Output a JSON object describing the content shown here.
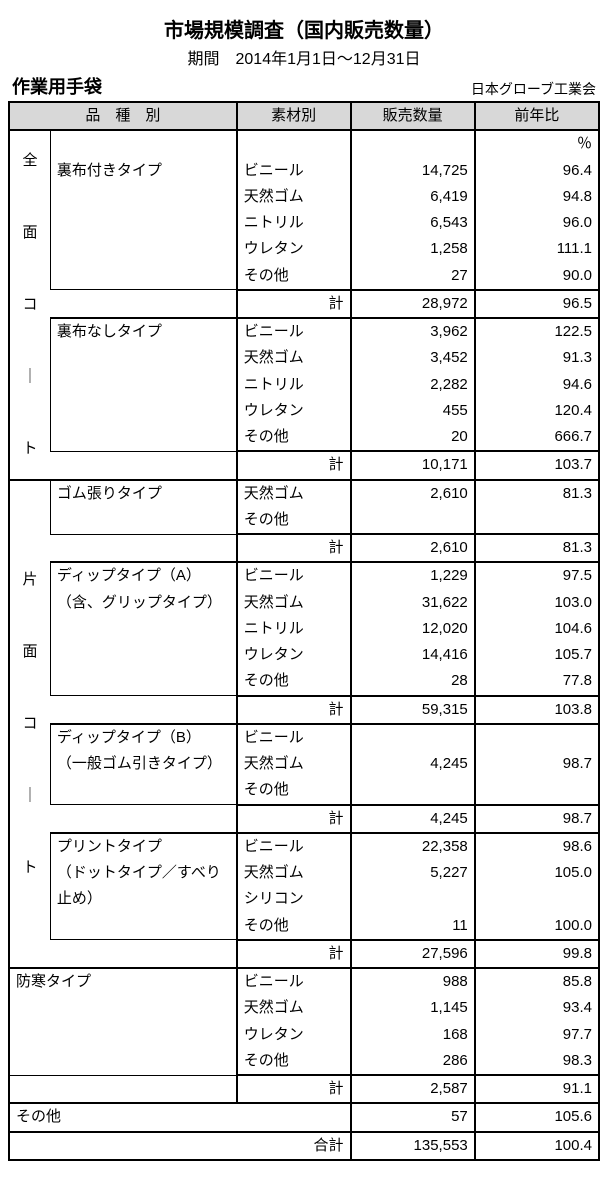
{
  "header": {
    "title": "市場規模調査（国内販売数量）",
    "period": "期間　2014年1月1日～12月31日",
    "product": "作業用手袋",
    "association": "日本グローブ工業会"
  },
  "columns": {
    "kind": "品　種　別",
    "material": "素材別",
    "qty": "販売数量",
    "ratio": "前年比"
  },
  "unit": "％",
  "cat1": {
    "label": "全\n\n面\n\nコ\n\n｜\n\nト"
  },
  "cat2": {
    "label": "片\n\n面\n\nコ\n\n｜\n\nト"
  },
  "grp_a": {
    "name": "裏布付きタイプ",
    "rows": [
      {
        "mat": "ビニール",
        "qty": "14,725",
        "pct": "96.4"
      },
      {
        "mat": "天然ゴム",
        "qty": "6,419",
        "pct": "94.8"
      },
      {
        "mat": "ニトリル",
        "qty": "6,543",
        "pct": "96.0"
      },
      {
        "mat": "ウレタン",
        "qty": "1,258",
        "pct": "111.1"
      },
      {
        "mat": "その他",
        "qty": "27",
        "pct": "90.0"
      }
    ],
    "sub": {
      "label": "計",
      "qty": "28,972",
      "pct": "96.5"
    }
  },
  "grp_b": {
    "name": "裏布なしタイプ",
    "rows": [
      {
        "mat": "ビニール",
        "qty": "3,962",
        "pct": "122.5"
      },
      {
        "mat": "天然ゴム",
        "qty": "3,452",
        "pct": "91.3"
      },
      {
        "mat": "ニトリル",
        "qty": "2,282",
        "pct": "94.6"
      },
      {
        "mat": "ウレタン",
        "qty": "455",
        "pct": "120.4"
      },
      {
        "mat": "その他",
        "qty": "20",
        "pct": "666.7"
      }
    ],
    "sub": {
      "label": "計",
      "qty": "10,171",
      "pct": "103.7"
    }
  },
  "grp_c": {
    "name": "ゴム張りタイプ",
    "rows": [
      {
        "mat": "天然ゴム",
        "qty": "2,610",
        "pct": "81.3"
      },
      {
        "mat": "その他",
        "qty": "",
        "pct": ""
      }
    ],
    "sub": {
      "label": "計",
      "qty": "2,610",
      "pct": "81.3"
    }
  },
  "grp_d": {
    "name1": "ディップタイプ（A）",
    "name2": "（含、グリップタイプ）",
    "rows": [
      {
        "mat": "ビニール",
        "qty": "1,229",
        "pct": "97.5"
      },
      {
        "mat": "天然ゴム",
        "qty": "31,622",
        "pct": "103.0"
      },
      {
        "mat": "ニトリル",
        "qty": "12,020",
        "pct": "104.6"
      },
      {
        "mat": "ウレタン",
        "qty": "14,416",
        "pct": "105.7"
      },
      {
        "mat": "その他",
        "qty": "28",
        "pct": "77.8"
      }
    ],
    "sub": {
      "label": "計",
      "qty": "59,315",
      "pct": "103.8"
    }
  },
  "grp_e": {
    "name1": "ディップタイプ（B）",
    "name2": "（一般ゴム引きタイプ）",
    "rows": [
      {
        "mat": "ビニール",
        "qty": "",
        "pct": ""
      },
      {
        "mat": "天然ゴム",
        "qty": "4,245",
        "pct": "98.7"
      },
      {
        "mat": "その他",
        "qty": "",
        "pct": ""
      }
    ],
    "sub": {
      "label": "計",
      "qty": "4,245",
      "pct": "98.7"
    }
  },
  "grp_f": {
    "name1": "プリントタイプ",
    "name2": "（ドットタイプ／すべり",
    "name3": "止め）",
    "rows": [
      {
        "mat": "ビニール",
        "qty": "22,358",
        "pct": "98.6"
      },
      {
        "mat": "天然ゴム",
        "qty": "5,227",
        "pct": "105.0"
      },
      {
        "mat": "シリコン",
        "qty": "",
        "pct": ""
      },
      {
        "mat": "その他",
        "qty": "11",
        "pct": "100.0"
      }
    ],
    "sub": {
      "label": "計",
      "qty": "27,596",
      "pct": "99.8"
    }
  },
  "grp_g": {
    "name": "防寒タイプ",
    "rows": [
      {
        "mat": "ビニール",
        "qty": "988",
        "pct": "85.8"
      },
      {
        "mat": "天然ゴム",
        "qty": "1,145",
        "pct": "93.4"
      },
      {
        "mat": "ウレタン",
        "qty": "168",
        "pct": "97.7"
      },
      {
        "mat": "その他",
        "qty": "286",
        "pct": "98.3"
      }
    ],
    "sub": {
      "label": "計",
      "qty": "2,587",
      "pct": "91.1"
    }
  },
  "grp_h": {
    "name": "その他",
    "qty": "57",
    "pct": "105.6"
  },
  "total": {
    "label": "合計",
    "qty": "135,553",
    "pct": "100.4"
  }
}
